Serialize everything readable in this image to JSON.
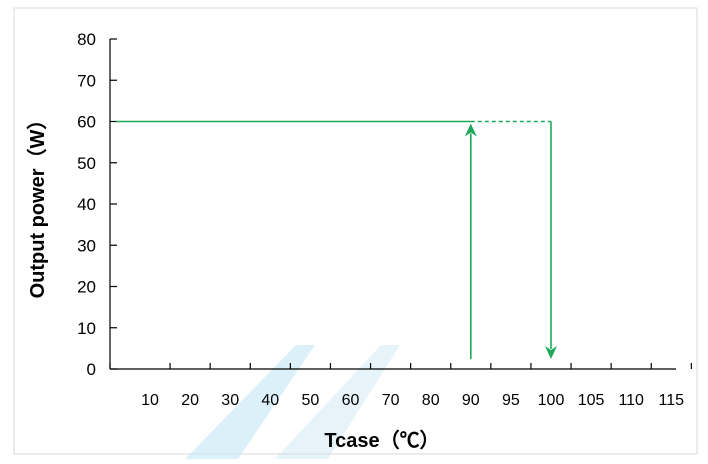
{
  "chart_data": {
    "type": "line",
    "xlabel": "Tcase（℃）",
    "ylabel": "Output power（W）",
    "x_categories": [
      "10",
      "20",
      "30",
      "40",
      "50",
      "60",
      "70",
      "80",
      "90",
      "95",
      "100",
      "105",
      "110",
      "115"
    ],
    "ylim": [
      0,
      80
    ],
    "y_ticks": [
      0,
      10,
      20,
      30,
      40,
      50,
      60,
      70,
      80
    ],
    "grid": false,
    "legend": "none",
    "series": [
      {
        "style": "solid",
        "color": "#1ea85a",
        "points": [
          {
            "x": "start",
            "y": 60
          },
          {
            "x": "90",
            "y": 60
          }
        ]
      },
      {
        "style": "dashed",
        "color": "#1ea85a",
        "points": [
          {
            "x": "90",
            "y": 60
          },
          {
            "x": "100",
            "y": 60
          }
        ]
      }
    ],
    "arrows": [
      {
        "x": "90",
        "from_y": 0,
        "to_y": 60,
        "direction": "up",
        "color": "#1ea85a"
      },
      {
        "x": "100",
        "from_y": 60,
        "to_y": 0,
        "direction": "down",
        "color": "#1ea85a"
      }
    ],
    "colors": {
      "line": "#1ea85a",
      "axis": "#000000",
      "frame": "#d9d9d9",
      "watermark": "#cde9f6"
    }
  }
}
